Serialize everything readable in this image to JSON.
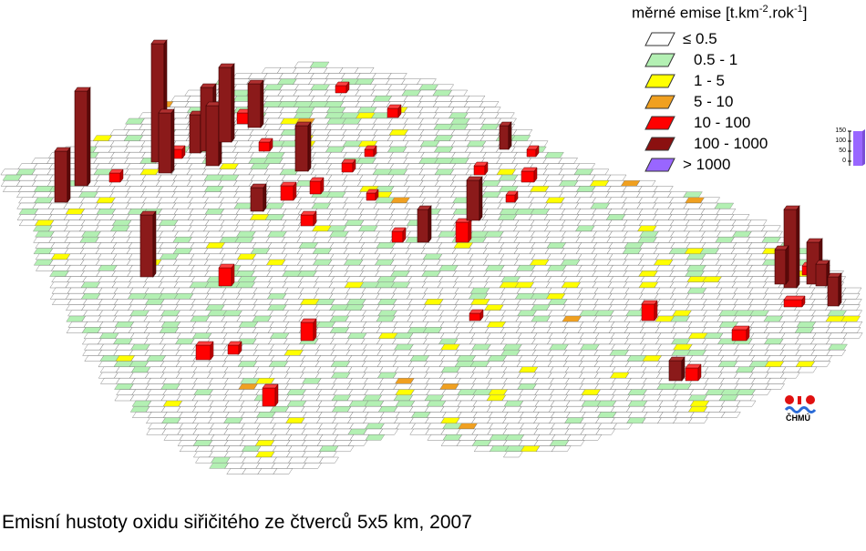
{
  "caption": "Emisní hustoty oxidu siřičitého ze čtverců 5x5 km, 2007",
  "legend": {
    "title_main": "měrné emise [t.km",
    "title_sup1": "-2",
    "title_mid": ".rok",
    "title_sup2": "-1",
    "title_end": "]",
    "items": [
      {
        "label": "≤ 0.5",
        "color": "#ffffff"
      },
      {
        "label": "0.5 - 1",
        "color": "#b3f0b3"
      },
      {
        "label": "1 - 5",
        "color": "#ffff00"
      },
      {
        "label": "5 - 10",
        "color": "#f0a020"
      },
      {
        "label": "10 - 100",
        "color": "#ff0000"
      },
      {
        "label": "100 - 1000",
        "color": "#8b1010"
      },
      {
        "label": "> 1000",
        "color": "#9966ff"
      }
    ]
  },
  "height_scale": {
    "ticks": [
      "150",
      "100",
      "50",
      "0"
    ],
    "color": "#9966ff"
  },
  "logo": {
    "text": "ČHMÚ"
  },
  "map_colors": {
    "grid_stroke": "#555555",
    "bar_dark": "#8b1a1a",
    "bar_red": "#ff0000"
  }
}
